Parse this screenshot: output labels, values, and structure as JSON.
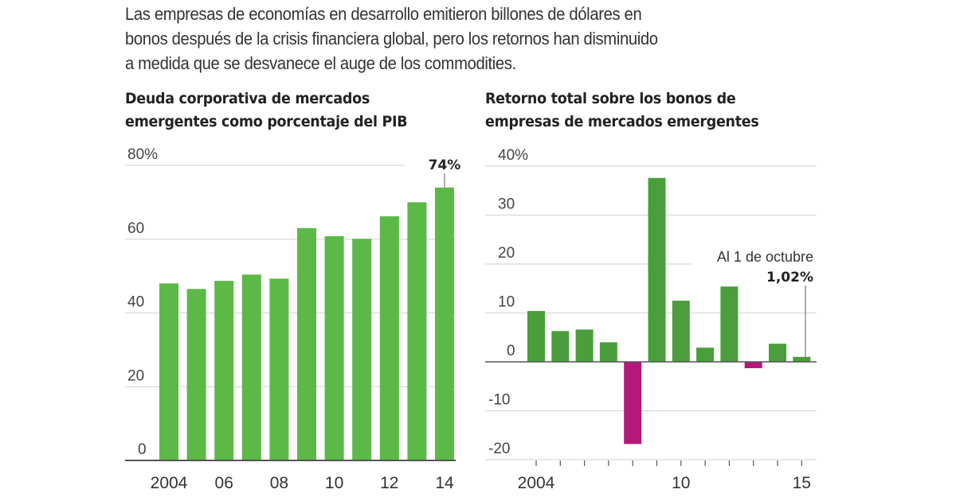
{
  "intro_text": "Las empresas de economías en desarrollo emitieron billones de dólares en bonos después de la crisis financiera global, pero los retornos han disminuido a medida que se desvanece el auge de los commodities.",
  "intro_lines": [
    "Las empresas de economías en desarrollo emitieron billones de dólares en",
    "bonos después de la crisis financiera global, pero los retornos han disminuido",
    "a medida que se desvanece el auge de los commodities."
  ],
  "colors": {
    "positive": "#5cb947",
    "positive_dark": "#4a9e3c",
    "negative": "#b5177a",
    "grid": "#d9d9d9",
    "axis": "#555555"
  },
  "chart_data": [
    {
      "type": "bar",
      "title": "Deuda corporativa de mercados emergentes como porcentaje del PIB",
      "title_lines": [
        "Deuda corporativa de mercados",
        "emergentes como porcentaje del PIB"
      ],
      "categories": [
        "2004",
        "2005",
        "2006",
        "2007",
        "2008",
        "2009",
        "2010",
        "2011",
        "2012",
        "2013",
        "2014"
      ],
      "values": [
        48,
        46.5,
        48.7,
        50.4,
        49.3,
        63,
        60.8,
        60.1,
        66.2,
        70,
        74
      ],
      "ylim": [
        0,
        80
      ],
      "yticks": [
        0,
        20,
        40,
        60,
        80
      ],
      "ytick_labels": [
        "0",
        "20",
        "40",
        "60",
        "80%"
      ],
      "xtick_labels": [
        {
          "category": "2004",
          "label": "2004"
        },
        {
          "category": "2006",
          "label": "06"
        },
        {
          "category": "2008",
          "label": "08"
        },
        {
          "category": "2010",
          "label": "10"
        },
        {
          "category": "2012",
          "label": "12"
        },
        {
          "category": "2014",
          "label": "14"
        }
      ],
      "annotation": {
        "category": "2014",
        "label": "74%"
      },
      "grid": true,
      "xlabel": "",
      "ylabel": ""
    },
    {
      "type": "bar",
      "title": "Retorno total sobre los bonos de empresas de mercados emergentes",
      "title_lines": [
        "Retorno total sobre los bonos de",
        "empresas de mercados emergentes"
      ],
      "categories": [
        "2004",
        "2005",
        "2006",
        "2007",
        "2008",
        "2009",
        "2010",
        "2011",
        "2012",
        "2013",
        "2014",
        "2015"
      ],
      "values": [
        10.4,
        6.3,
        6.6,
        4.0,
        -16.8,
        37.6,
        12.5,
        2.9,
        15.4,
        -1.3,
        3.7,
        1.02
      ],
      "ylim": [
        -20,
        40
      ],
      "yticks": [
        -20,
        -10,
        0,
        10,
        20,
        30,
        40
      ],
      "ytick_labels": [
        "-20",
        "-10",
        "0",
        "10",
        "20",
        "30",
        "40%"
      ],
      "xtick_labels": [
        {
          "category": "2004",
          "label": "2004"
        },
        {
          "category": "2010",
          "label": "10"
        },
        {
          "category": "2015",
          "label": "15"
        }
      ],
      "annotation": {
        "category": "2015",
        "note": "Al 1 de octubre",
        "label": "1,02%"
      },
      "grid": true,
      "xlabel": "",
      "ylabel": ""
    }
  ]
}
